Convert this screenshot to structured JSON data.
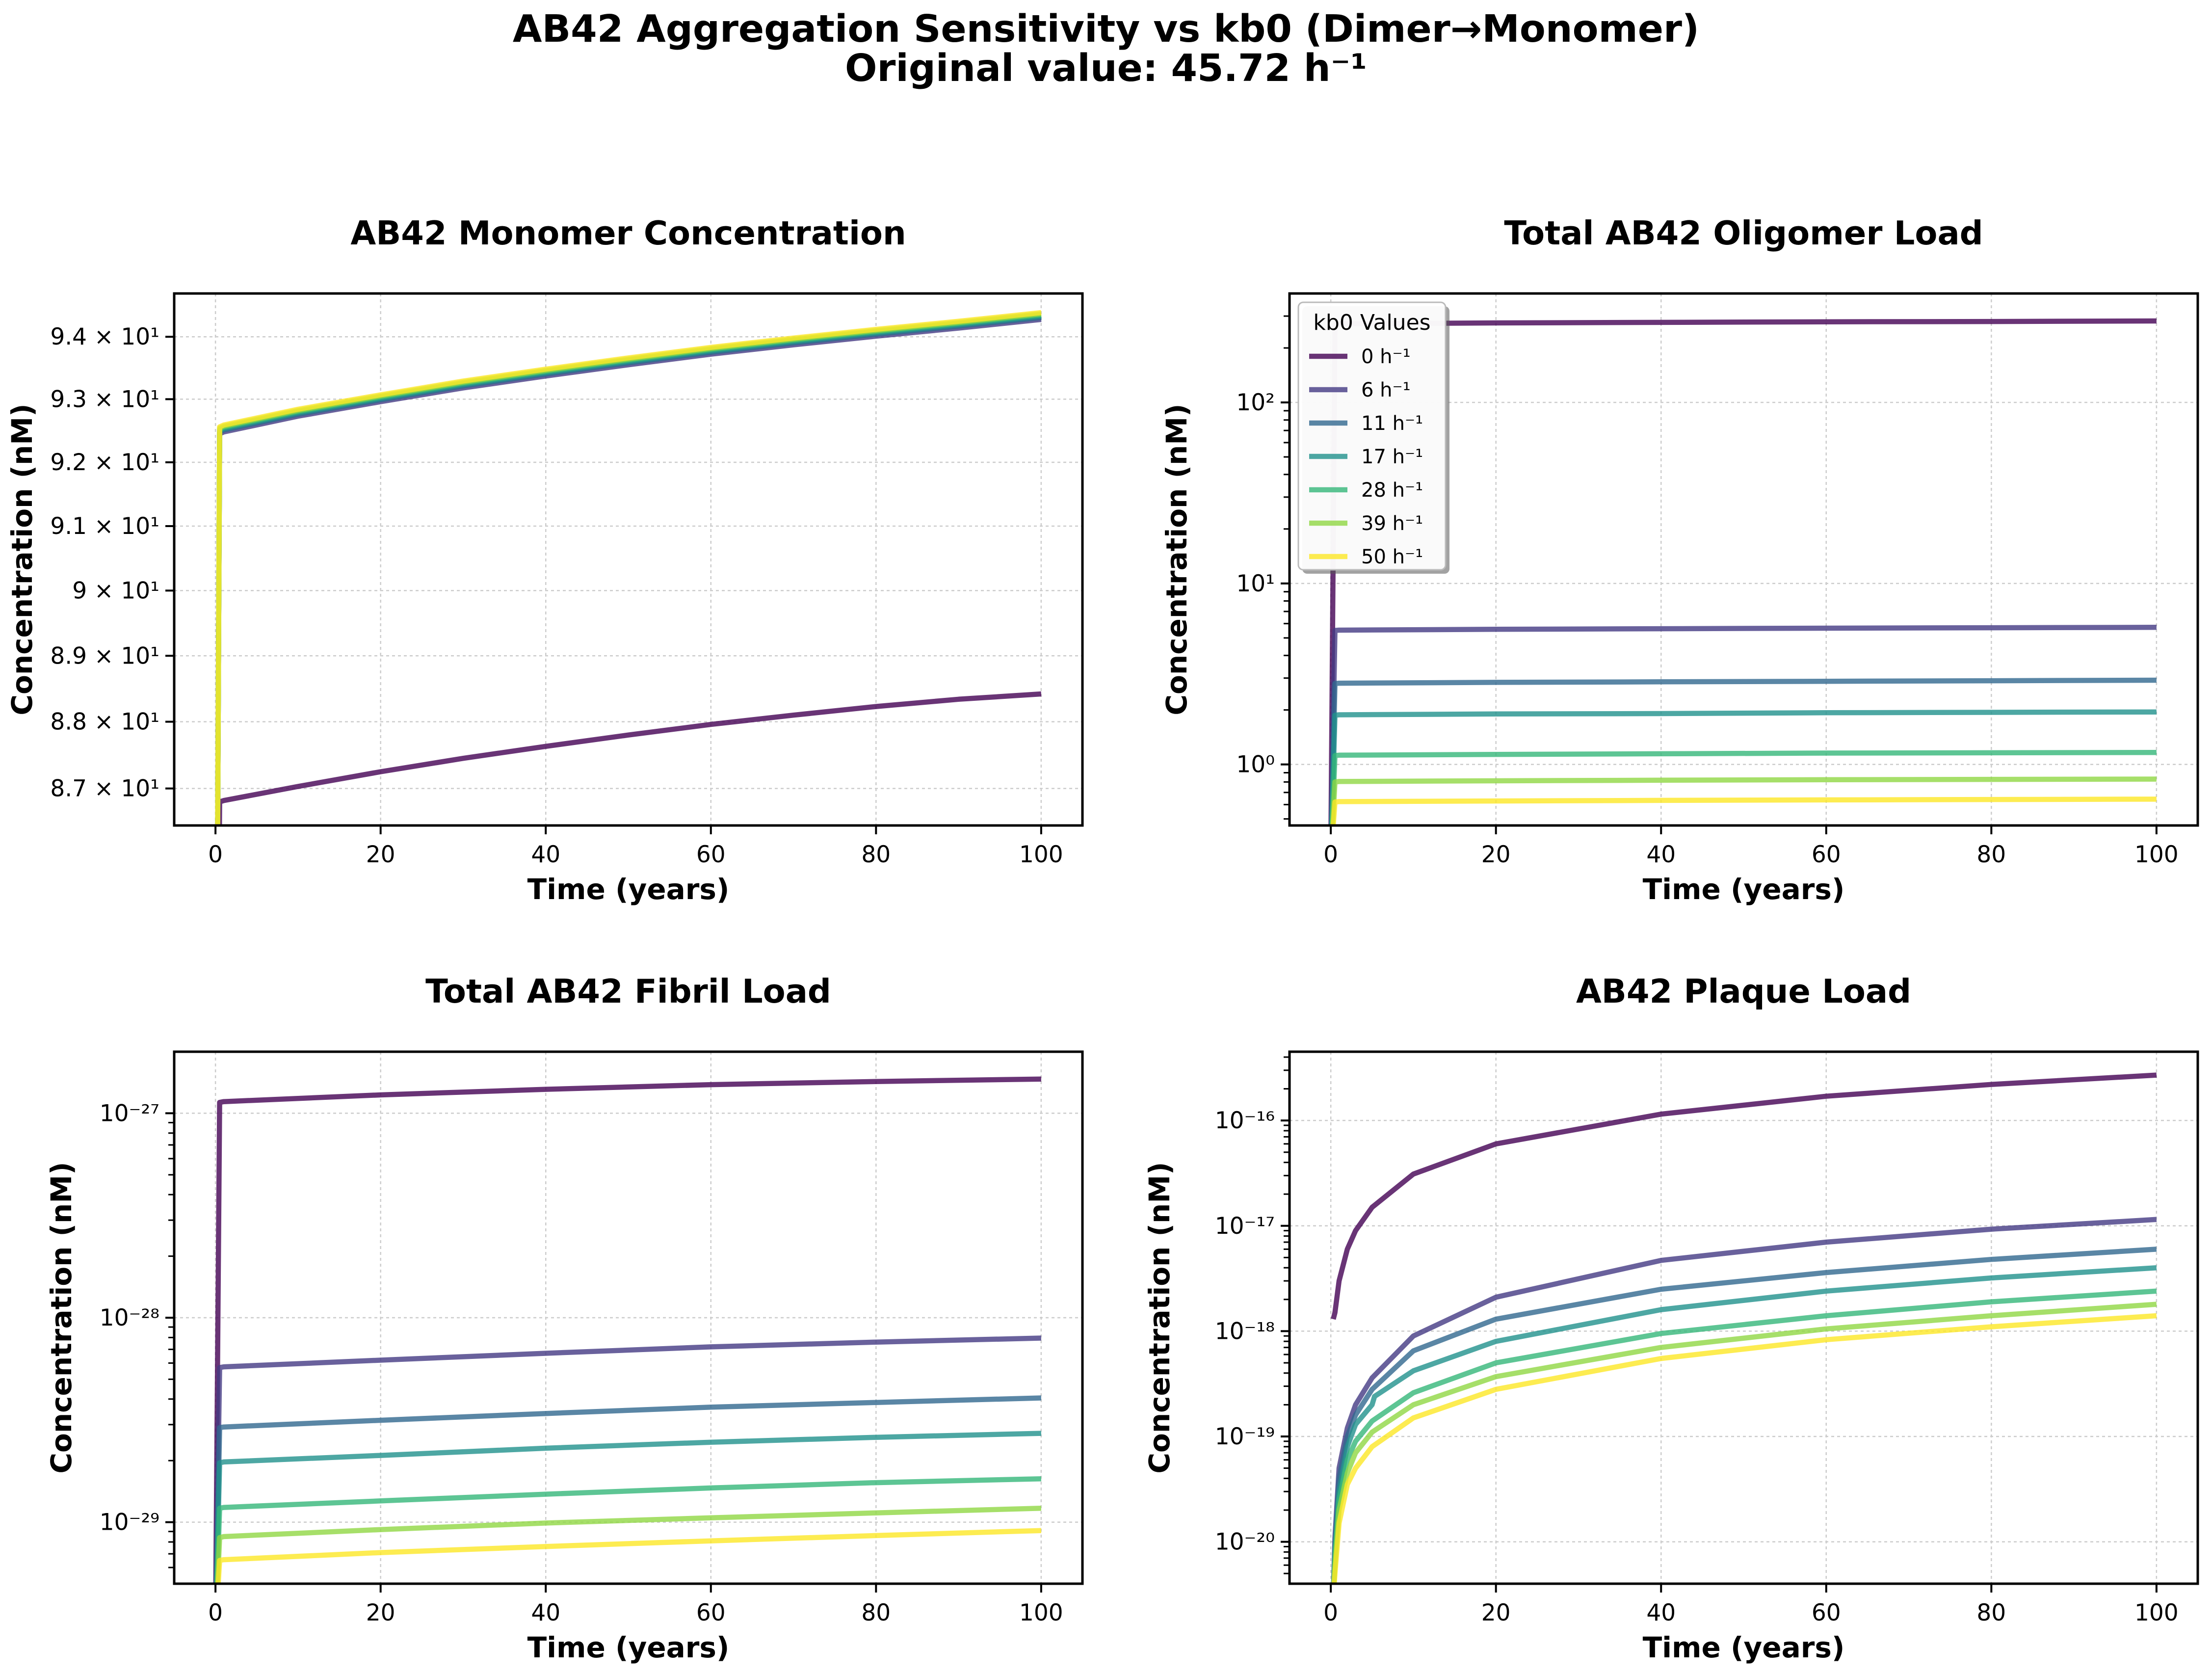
{
  "figure": {
    "title_line1": "AB42 Aggregation Sensitivity vs kb0 (Dimer→Monomer)",
    "title_line2": "Original value: 45.72 h⁻¹"
  },
  "colors": {
    "kb0_0": "#440154",
    "kb0_6": "#443983",
    "kb0_11": "#31688e",
    "kb0_17": "#21918c",
    "kb0_28": "#35b779",
    "kb0_39": "#90d743",
    "kb0_50": "#fde725"
  },
  "chart_data": [
    {
      "id": "monomer",
      "type": "line",
      "title": "AB42 Monomer Concentration",
      "xlabel": "Time (years)",
      "ylabel": "Concentration (nM)",
      "yscale": "log",
      "xlim": [
        -5,
        105
      ],
      "ylim": [
        86.45,
        94.7
      ],
      "xticks": [
        0,
        20,
        40,
        60,
        80,
        100
      ],
      "xtick_labels": [
        "0",
        "20",
        "40",
        "60",
        "80",
        "100"
      ],
      "yticks": [
        87,
        88,
        89,
        90,
        91,
        92,
        93,
        94
      ],
      "ytick_labels": [
        "8.7 × 10¹",
        "8.8 × 10¹",
        "8.9 × 10¹",
        "9 × 10¹",
        "9.1 × 10¹",
        "9.2 × 10¹",
        "9.3 × 10¹",
        "9.4 × 10¹"
      ],
      "grid": true,
      "series": [
        {
          "name": "0 h⁻¹",
          "color": "#440154",
          "x": [
            0,
            0.5,
            1,
            10,
            20,
            30,
            40,
            50,
            60,
            70,
            80,
            90,
            100
          ],
          "y": [
            80,
            86.8,
            86.82,
            87.03,
            87.25,
            87.45,
            87.63,
            87.8,
            87.96,
            88.1,
            88.23,
            88.34,
            88.42
          ]
        },
        {
          "name": "6 h⁻¹",
          "color": "#443983",
          "x": [
            0,
            0.5,
            1,
            10,
            20,
            30,
            40,
            50,
            60,
            70,
            80,
            90,
            100
          ],
          "y": [
            80,
            92.45,
            92.48,
            92.73,
            92.96,
            93.18,
            93.37,
            93.55,
            93.72,
            93.87,
            94.01,
            94.14,
            94.28
          ]
        },
        {
          "name": "11 h⁻¹",
          "color": "#31688e",
          "x": [
            0,
            0.5,
            1,
            10,
            20,
            30,
            40,
            50,
            60,
            70,
            80,
            90,
            100
          ],
          "y": [
            80,
            92.48,
            92.51,
            92.76,
            92.99,
            93.21,
            93.4,
            93.58,
            93.75,
            93.9,
            94.04,
            94.17,
            94.31
          ]
        },
        {
          "name": "17 h⁻¹",
          "color": "#21918c",
          "x": [
            0,
            0.5,
            1,
            10,
            20,
            30,
            40,
            50,
            60,
            70,
            80,
            90,
            100
          ],
          "y": [
            80,
            92.5,
            92.53,
            92.78,
            93.01,
            93.23,
            93.42,
            93.6,
            93.77,
            93.92,
            94.06,
            94.19,
            94.33
          ]
        },
        {
          "name": "28 h⁻¹",
          "color": "#35b779",
          "x": [
            0,
            0.5,
            1,
            10,
            20,
            30,
            40,
            50,
            60,
            70,
            80,
            90,
            100
          ],
          "y": [
            80,
            92.52,
            92.55,
            92.8,
            93.03,
            93.25,
            93.44,
            93.62,
            93.79,
            93.94,
            94.08,
            94.21,
            94.35
          ]
        },
        {
          "name": "39 h⁻¹",
          "color": "#90d743",
          "x": [
            0,
            0.5,
            1,
            10,
            20,
            30,
            40,
            50,
            60,
            70,
            80,
            90,
            100
          ],
          "y": [
            80,
            92.54,
            92.57,
            92.82,
            93.05,
            93.27,
            93.46,
            93.64,
            93.81,
            93.96,
            94.1,
            94.23,
            94.37
          ]
        },
        {
          "name": "50 h⁻¹",
          "color": "#fde725",
          "x": [
            0,
            0.5,
            1,
            10,
            20,
            30,
            40,
            50,
            60,
            70,
            80,
            90,
            100
          ],
          "y": [
            80,
            92.56,
            92.59,
            92.84,
            93.07,
            93.29,
            93.48,
            93.66,
            93.83,
            93.98,
            94.12,
            94.25,
            94.39
          ]
        }
      ]
    },
    {
      "id": "oligomer",
      "type": "line",
      "title": "Total AB42 Oligomer Load",
      "xlabel": "Time (years)",
      "ylabel": "Concentration (nM)",
      "yscale": "log",
      "xlim": [
        -5,
        105
      ],
      "ylim": [
        0.46,
        400
      ],
      "xticks": [
        0,
        20,
        40,
        60,
        80,
        100
      ],
      "xtick_labels": [
        "0",
        "20",
        "40",
        "60",
        "80",
        "100"
      ],
      "yticks": [
        1,
        10,
        100
      ],
      "ytick_labels": [
        "10⁰",
        "10¹",
        "10²"
      ],
      "grid": true,
      "legend": {
        "title": "kb0 Values",
        "loc": "upper-left"
      },
      "series": [
        {
          "name": "0 h⁻¹",
          "color": "#440154",
          "x": [
            0,
            0.5,
            1,
            20,
            40,
            60,
            80,
            100
          ],
          "y": [
            0.3,
            270,
            272,
            275,
            277,
            279,
            280,
            282
          ]
        },
        {
          "name": "6 h⁻¹",
          "color": "#443983",
          "x": [
            0,
            0.5,
            1,
            20,
            40,
            60,
            80,
            100
          ],
          "y": [
            0.3,
            5.5,
            5.52,
            5.58,
            5.62,
            5.66,
            5.69,
            5.72
          ]
        },
        {
          "name": "11 h⁻¹",
          "color": "#31688e",
          "x": [
            0,
            0.5,
            1,
            20,
            40,
            60,
            80,
            100
          ],
          "y": [
            0.3,
            2.8,
            2.81,
            2.84,
            2.86,
            2.88,
            2.9,
            2.92
          ]
        },
        {
          "name": "17 h⁻¹",
          "color": "#21918c",
          "x": [
            0,
            0.5,
            1,
            20,
            40,
            60,
            80,
            100
          ],
          "y": [
            0.3,
            1.87,
            1.88,
            1.9,
            1.91,
            1.93,
            1.94,
            1.95
          ]
        },
        {
          "name": "28 h⁻¹",
          "color": "#35b779",
          "x": [
            0,
            0.5,
            1,
            20,
            40,
            60,
            80,
            100
          ],
          "y": [
            0.3,
            1.12,
            1.125,
            1.135,
            1.145,
            1.155,
            1.16,
            1.165
          ]
        },
        {
          "name": "39 h⁻¹",
          "color": "#90d743",
          "x": [
            0,
            0.5,
            1,
            20,
            40,
            60,
            80,
            100
          ],
          "y": [
            0.3,
            0.8,
            0.805,
            0.812,
            0.818,
            0.823,
            0.827,
            0.83
          ]
        },
        {
          "name": "50 h⁻¹",
          "color": "#fde725",
          "x": [
            0,
            0.5,
            1,
            20,
            40,
            60,
            80,
            100
          ],
          "y": [
            0.3,
            0.62,
            0.623,
            0.628,
            0.633,
            0.637,
            0.64,
            0.643
          ]
        }
      ]
    },
    {
      "id": "fibril",
      "type": "line",
      "title": "Total AB42 Fibril Load",
      "xlabel": "Time (years)",
      "ylabel": "Concentration (nM)",
      "yscale": "log",
      "xlim": [
        -5,
        105
      ],
      "ylim": [
        5e-30,
        2e-27
      ],
      "xticks": [
        0,
        20,
        40,
        60,
        80,
        100
      ],
      "xtick_labels": [
        "0",
        "20",
        "40",
        "60",
        "80",
        "100"
      ],
      "yticks": [
        1e-29,
        1e-28,
        1e-27
      ],
      "ytick_labels": [
        "10⁻²⁹",
        "10⁻²⁸",
        "10⁻²⁷"
      ],
      "grid": true,
      "series": [
        {
          "name": "0 h⁻¹",
          "color": "#440154",
          "x": [
            0,
            0.5,
            1,
            20,
            40,
            60,
            80,
            100
          ],
          "y": [
            3e-30,
            1.13e-27,
            1.14e-27,
            1.23e-27,
            1.31e-27,
            1.38e-27,
            1.43e-27,
            1.47e-27
          ]
        },
        {
          "name": "6 h⁻¹",
          "color": "#443983",
          "x": [
            0,
            0.5,
            1,
            20,
            40,
            60,
            80,
            100
          ],
          "y": [
            3e-30,
            5.7e-29,
            5.75e-29,
            6.2e-29,
            6.7e-29,
            7.2e-29,
            7.6e-29,
            7.95e-29
          ]
        },
        {
          "name": "11 h⁻¹",
          "color": "#31688e",
          "x": [
            0,
            0.5,
            1,
            20,
            40,
            60,
            80,
            100
          ],
          "y": [
            3e-30,
            2.9e-29,
            2.92e-29,
            3.15e-29,
            3.4e-29,
            3.65e-29,
            3.85e-29,
            4.05e-29
          ]
        },
        {
          "name": "17 h⁻¹",
          "color": "#21918c",
          "x": [
            0,
            0.5,
            1,
            20,
            40,
            60,
            80,
            100
          ],
          "y": [
            3e-30,
            1.95e-29,
            1.97e-29,
            2.12e-29,
            2.3e-29,
            2.46e-29,
            2.6e-29,
            2.72e-29
          ]
        },
        {
          "name": "28 h⁻¹",
          "color": "#35b779",
          "x": [
            0,
            0.5,
            1,
            20,
            40,
            60,
            80,
            100
          ],
          "y": [
            3e-30,
            1.17e-29,
            1.18e-29,
            1.27e-29,
            1.37e-29,
            1.47e-29,
            1.56e-29,
            1.63e-29
          ]
        },
        {
          "name": "39 h⁻¹",
          "color": "#90d743",
          "x": [
            0,
            0.5,
            1,
            20,
            40,
            60,
            80,
            100
          ],
          "y": [
            3e-30,
            8.4e-30,
            8.5e-30,
            9.2e-30,
            9.9e-30,
            1.05e-29,
            1.11e-29,
            1.17e-29
          ]
        },
        {
          "name": "50 h⁻¹",
          "color": "#fde725",
          "x": [
            0,
            0.5,
            1,
            20,
            40,
            60,
            80,
            100
          ],
          "y": [
            3e-30,
            6.5e-30,
            6.55e-30,
            7.1e-30,
            7.6e-30,
            8.1e-30,
            8.6e-30,
            9.1e-30
          ]
        }
      ]
    },
    {
      "id": "plaque",
      "type": "line",
      "title": "AB42 Plaque Load",
      "xlabel": "Time (years)",
      "ylabel": "Concentration (nM)",
      "yscale": "log",
      "xlim": [
        -5,
        105
      ],
      "ylim": [
        4e-21,
        4.5e-16
      ],
      "xticks": [
        0,
        20,
        40,
        60,
        80,
        100
      ],
      "xtick_labels": [
        "0",
        "20",
        "40",
        "60",
        "80",
        "100"
      ],
      "yticks": [
        1e-20,
        1e-19,
        1e-18,
        1e-17,
        1e-16
      ],
      "ytick_labels": [
        "10⁻²⁰",
        "10⁻¹⁹",
        "10⁻¹⁸",
        "10⁻¹⁷",
        "10⁻¹⁶"
      ],
      "grid": true,
      "series": [
        {
          "name": "0 h⁻¹",
          "color": "#440154",
          "x": [
            0.3,
            0.5,
            1,
            2,
            3,
            5,
            10,
            20,
            40,
            60,
            80,
            100
          ],
          "y": [
            1.3e-18,
            1.5e-18,
            3e-18,
            6e-18,
            9e-18,
            1.5e-17,
            3.1e-17,
            6e-17,
            1.15e-16,
            1.7e-16,
            2.2e-16,
            2.7e-16
          ]
        },
        {
          "name": "6 h⁻¹",
          "color": "#443983",
          "x": [
            0.3,
            0.5,
            1,
            2,
            3,
            5,
            10,
            20,
            40,
            60,
            80,
            100
          ],
          "y": [
            3e-21,
            1.1e-20,
            5e-20,
            1.2e-19,
            2e-19,
            3.6e-19,
            9e-19,
            2.1e-18,
            4.7e-18,
            7e-18,
            9.3e-18,
            1.15e-17
          ]
        },
        {
          "name": "11 h⁻¹",
          "color": "#31688e",
          "x": [
            0.3,
            0.5,
            1,
            2,
            3,
            5,
            10,
            20,
            40,
            60,
            80,
            100
          ],
          "y": [
            3e-21,
            9e-21,
            4e-20,
            1e-19,
            1.6e-19,
            2.8e-19,
            6.5e-19,
            1.3e-18,
            2.5e-18,
            3.6e-18,
            4.8e-18,
            6e-18
          ]
        },
        {
          "name": "17 h⁻¹",
          "color": "#21918c",
          "x": [
            0.3,
            0.5,
            1,
            2,
            3,
            5,
            5.3,
            10,
            20,
            40,
            60,
            80,
            100
          ],
          "y": [
            3e-21,
            8e-21,
            3e-20,
            8e-20,
            1.3e-19,
            2e-19,
            2.4e-19,
            4.2e-19,
            8e-19,
            1.6e-18,
            2.4e-18,
            3.2e-18,
            4e-18
          ]
        },
        {
          "name": "28 h⁻¹",
          "color": "#35b779",
          "x": [
            0.3,
            0.5,
            1,
            2,
            3,
            5,
            10,
            20,
            40,
            60,
            80,
            100
          ],
          "y": [
            3e-21,
            7e-21,
            2.5e-20,
            6e-20,
            9e-20,
            1.4e-19,
            2.6e-19,
            5e-19,
            9.5e-19,
            1.4e-18,
            1.9e-18,
            2.4e-18
          ]
        },
        {
          "name": "39 h⁻¹",
          "color": "#90d743",
          "x": [
            0.3,
            0.5,
            1,
            2,
            3,
            5,
            10,
            20,
            40,
            60,
            80,
            100
          ],
          "y": [
            3e-21,
            6e-21,
            2e-20,
            4.5e-20,
            7e-20,
            1.1e-19,
            2e-19,
            3.7e-19,
            7e-19,
            1.05e-18,
            1.4e-18,
            1.8e-18
          ]
        },
        {
          "name": "50 h⁻¹",
          "color": "#fde725",
          "x": [
            0.3,
            0.5,
            1,
            2,
            3,
            5,
            10,
            20,
            40,
            60,
            80,
            100
          ],
          "y": [
            3e-21,
            5e-21,
            1.5e-20,
            3.5e-20,
            5e-20,
            8e-20,
            1.5e-19,
            2.8e-19,
            5.5e-19,
            8.3e-19,
            1.1e-18,
            1.4e-18
          ]
        }
      ]
    }
  ]
}
